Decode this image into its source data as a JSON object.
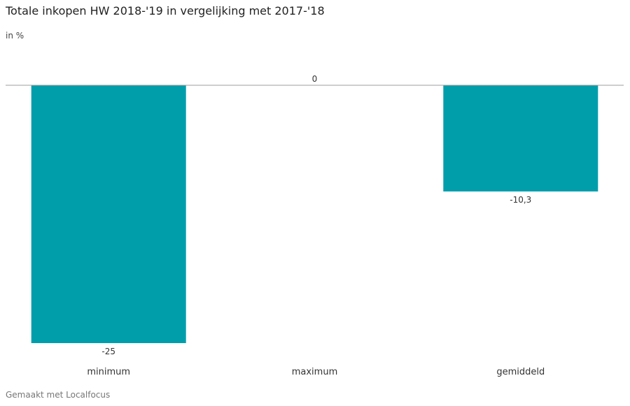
{
  "title": "Totale inkopen HW 2018-'19 in vergelijking met 2017-'18",
  "subtitle": "in %",
  "footer": "Gemaakt met Localfocus",
  "colors": {
    "bar": "#009eab",
    "baseline": "#9e9e9e",
    "text": "#333333"
  },
  "chart_data": {
    "type": "bar",
    "categories": [
      "minimum",
      "maximum",
      "gemiddeld"
    ],
    "values": [
      -25,
      0,
      -10.3
    ],
    "data_labels": [
      "-25",
      "0",
      "-10,3"
    ],
    "ylim": [
      -25,
      0
    ],
    "grid": false,
    "legend": "none",
    "xlabel": "",
    "ylabel": ""
  }
}
